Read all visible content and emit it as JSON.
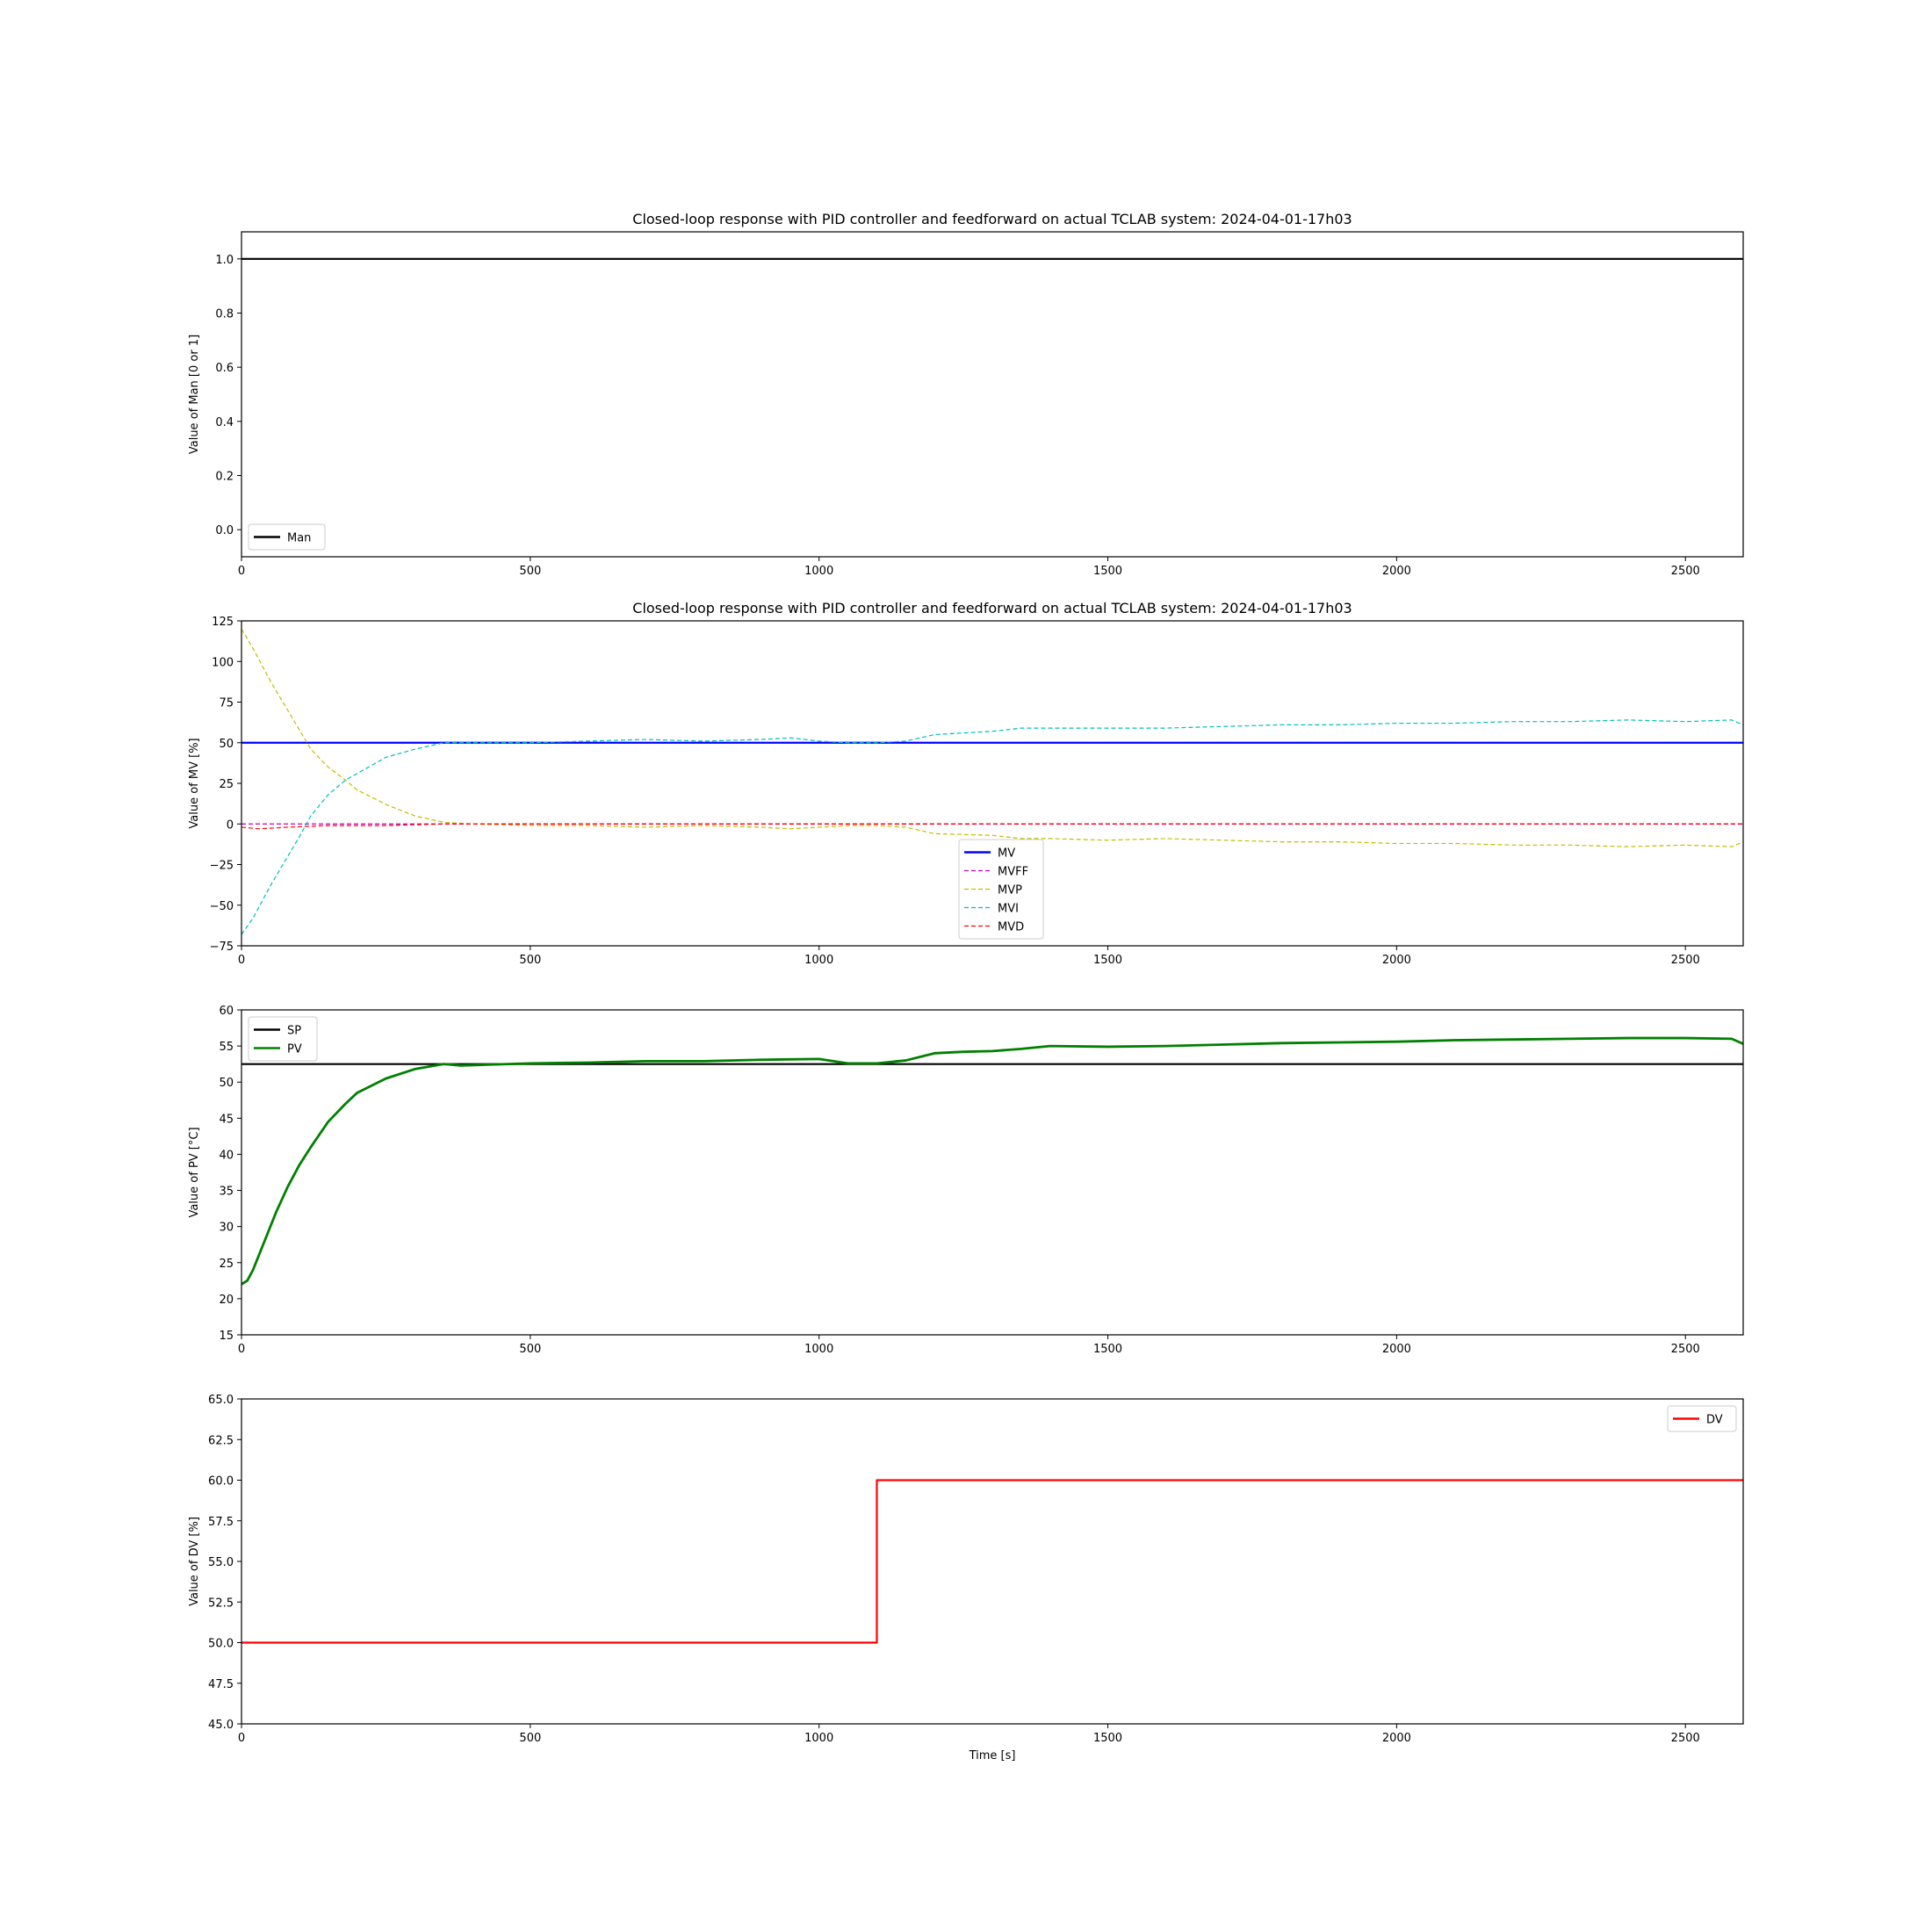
{
  "figure": {
    "title": "Closed-loop response with PID controller and feedforward on actual TCLAB system: 2024-04-01-17h03"
  },
  "colors": {
    "Man": "#000000",
    "MV": "#0000ff",
    "MVFF": "#bf00bf",
    "MVP": "#bfbf00",
    "MVI": "#00bfbf",
    "MVD": "#ff0000",
    "SP": "#000000",
    "PV": "#008000",
    "DV": "#ff0000"
  },
  "chart_data": [
    {
      "type": "line",
      "title": "Closed-loop response with PID controller and feedforward on actual TCLAB system: 2024-04-01-17h03",
      "xlabel": "",
      "ylabel": "Value of Man [0 or 1]",
      "xlim": [
        0,
        2600
      ],
      "ylim": [
        -0.1,
        1.1
      ],
      "xticks": [
        0,
        500,
        1000,
        1500,
        2000,
        2500
      ],
      "yticks": [
        0.0,
        0.2,
        0.4,
        0.6,
        0.8,
        1.0
      ],
      "yticklabels": [
        "0.0",
        "0.2",
        "0.4",
        "0.6",
        "0.8",
        "1.0"
      ],
      "legend_position": "lower-left",
      "series": [
        {
          "name": "Man",
          "color_key": "Man",
          "style": "solid",
          "width": 2.2,
          "x": [
            0,
            2600
          ],
          "y": [
            1.0,
            1.0
          ]
        }
      ]
    },
    {
      "type": "line",
      "title": "Closed-loop response with PID controller and feedforward on actual TCLAB system: 2024-04-01-17h03",
      "xlabel": "",
      "ylabel": "Value of MV [%]",
      "xlim": [
        0,
        2600
      ],
      "ylim": [
        -75,
        125
      ],
      "xticks": [
        0,
        500,
        1000,
        1500,
        2000,
        2500
      ],
      "yticks": [
        -75,
        -50,
        -25,
        0,
        25,
        50,
        75,
        100,
        125
      ],
      "yticklabels": [
        "−75",
        "−50",
        "−25",
        "0",
        "25",
        "50",
        "75",
        "100",
        "125"
      ],
      "legend_position": "lower-center",
      "series": [
        {
          "name": "MV",
          "color_key": "MV",
          "style": "solid",
          "width": 2.2,
          "x": [
            0,
            2600
          ],
          "y": [
            50,
            50
          ]
        },
        {
          "name": "MVFF",
          "color_key": "MVFF",
          "style": "dashed",
          "width": 1.2,
          "x": [
            0,
            1100,
            1100,
            2600
          ],
          "y": [
            0,
            0,
            0,
            0
          ]
        },
        {
          "name": "MVP",
          "color_key": "MVP",
          "style": "dashed",
          "width": 1.2,
          "x": [
            0,
            20,
            50,
            80,
            100,
            120,
            150,
            180,
            200,
            250,
            300,
            350,
            400,
            500,
            600,
            700,
            800,
            900,
            950,
            1000,
            1050,
            1100,
            1150,
            1200,
            1300,
            1350,
            1400,
            1500,
            1600,
            1700,
            1800,
            1900,
            2000,
            2100,
            2200,
            2300,
            2400,
            2500,
            2580,
            2600
          ],
          "y": [
            120,
            108,
            88,
            70,
            58,
            46,
            35,
            27,
            21,
            12,
            5,
            1,
            0,
            -1,
            -1,
            -2,
            -1,
            -2,
            -3,
            -2,
            -1,
            -1,
            -2,
            -6,
            -7,
            -9,
            -9,
            -10,
            -9,
            -10,
            -11,
            -11,
            -12,
            -12,
            -13,
            -13,
            -14,
            -13,
            -14,
            -11
          ]
        },
        {
          "name": "MVI",
          "color_key": "MVI",
          "style": "dashed",
          "width": 1.2,
          "x": [
            0,
            20,
            50,
            80,
            100,
            120,
            150,
            180,
            200,
            250,
            300,
            350,
            400,
            500,
            600,
            700,
            800,
            900,
            950,
            1000,
            1050,
            1100,
            1150,
            1200,
            1300,
            1350,
            1400,
            1500,
            1600,
            1700,
            1800,
            1900,
            2000,
            2100,
            2200,
            2300,
            2400,
            2500,
            2580,
            2600
          ],
          "y": [
            -68,
            -58,
            -38,
            -20,
            -8,
            5,
            18,
            27,
            31,
            41,
            46,
            50,
            50,
            50,
            51,
            52,
            51,
            52,
            53,
            51,
            50,
            50,
            51,
            55,
            57,
            59,
            59,
            59,
            59,
            60,
            61,
            61,
            62,
            62,
            63,
            63,
            64,
            63,
            64,
            61
          ]
        },
        {
          "name": "MVD",
          "color_key": "MVD",
          "style": "dashed",
          "width": 1.2,
          "x": [
            0,
            30,
            80,
            150,
            250,
            350,
            500,
            1000,
            1500,
            2000,
            2600
          ],
          "y": [
            -2,
            -3,
            -2,
            -1,
            -1,
            0,
            0,
            0,
            0,
            0,
            0
          ]
        }
      ]
    },
    {
      "type": "line",
      "title": "",
      "xlabel": "",
      "ylabel": "Value of PV [°C]",
      "xlim": [
        0,
        2600
      ],
      "ylim": [
        15,
        60
      ],
      "xticks": [
        0,
        500,
        1000,
        1500,
        2000,
        2500
      ],
      "yticks": [
        15,
        20,
        25,
        30,
        35,
        40,
        45,
        50,
        55,
        60
      ],
      "yticklabels": [
        "15",
        "20",
        "25",
        "30",
        "35",
        "40",
        "45",
        "50",
        "55",
        "60"
      ],
      "legend_position": "upper-left",
      "series": [
        {
          "name": "SP",
          "color_key": "SP",
          "style": "solid",
          "width": 2.2,
          "x": [
            0,
            2600
          ],
          "y": [
            52.5,
            52.5
          ]
        },
        {
          "name": "PV",
          "color_key": "PV",
          "style": "solid",
          "width": 2.8,
          "x": [
            0,
            10,
            20,
            40,
            60,
            80,
            100,
            120,
            150,
            180,
            200,
            250,
            300,
            350,
            380,
            420,
            500,
            600,
            700,
            800,
            900,
            1000,
            1050,
            1100,
            1150,
            1200,
            1250,
            1300,
            1350,
            1400,
            1500,
            1600,
            1700,
            1800,
            1900,
            2000,
            2100,
            2200,
            2300,
            2400,
            2500,
            2580,
            2600
          ],
          "y": [
            22,
            22.5,
            24,
            28,
            32,
            35.5,
            38.5,
            41,
            44.5,
            47,
            48.5,
            50.5,
            51.8,
            52.5,
            52.3,
            52.4,
            52.6,
            52.7,
            52.9,
            52.9,
            53.1,
            53.2,
            52.6,
            52.6,
            53.0,
            54.0,
            54.2,
            54.3,
            54.6,
            55.0,
            54.9,
            55.0,
            55.2,
            55.4,
            55.5,
            55.6,
            55.8,
            55.9,
            56.0,
            56.1,
            56.1,
            56.0,
            55.3
          ]
        }
      ]
    },
    {
      "type": "line",
      "title": "",
      "xlabel": "Time [s]",
      "ylabel": "Value of DV [%]",
      "xlim": [
        0,
        2600
      ],
      "ylim": [
        45,
        65
      ],
      "xticks": [
        0,
        500,
        1000,
        1500,
        2000,
        2500
      ],
      "yticks": [
        45.0,
        47.5,
        50.0,
        52.5,
        55.0,
        57.5,
        60.0,
        62.5,
        65.0
      ],
      "yticklabels": [
        "45.0",
        "47.5",
        "50.0",
        "52.5",
        "55.0",
        "57.5",
        "60.0",
        "62.5",
        "65.0"
      ],
      "legend_position": "upper-right",
      "series": [
        {
          "name": "DV",
          "color_key": "DV",
          "style": "solid",
          "width": 2.2,
          "x": [
            0,
            1100,
            1100,
            2600
          ],
          "y": [
            50,
            50,
            60,
            60
          ]
        }
      ]
    }
  ]
}
